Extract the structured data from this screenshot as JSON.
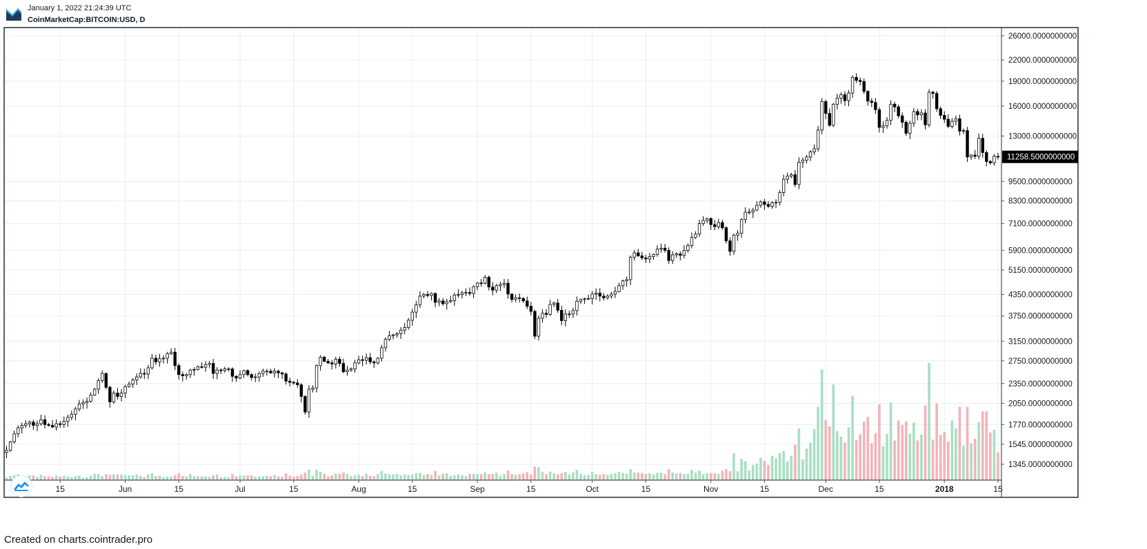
{
  "header": {
    "datetime": "January 1, 2022 21:24:39 UTC",
    "symbol": "CoinMarketCap:BITCOIN:USD, D"
  },
  "footer": {
    "credit": "Created on charts.cointrader.pro"
  },
  "icons": {
    "logo": "cointrader-logo-icon",
    "watermark": "tradingview-watermark-icon"
  },
  "colors": {
    "candle_up_fill": "#ffffff",
    "candle_down_fill": "#000000",
    "candle_border": "#000000",
    "volume_up": "#a9dfc2",
    "volume_down": "#f4b3b8",
    "grid": "#e9eef3",
    "frame": "#1f2d3d",
    "price_label_bg": "#000000",
    "price_label_text": "#ffffff"
  },
  "chart_data": {
    "type": "candlestick",
    "interval": "D",
    "y_scale": "log",
    "grid": true,
    "ylim": [
      1250,
      26000
    ],
    "last_price": 11258.5,
    "last_price_label": "11258.5000000000",
    "y_ticks": [
      {
        "value": 26000,
        "label": "26000.0000000000"
      },
      {
        "value": 22000,
        "label": "22000.0000000000"
      },
      {
        "value": 19000,
        "label": "19000.0000000000"
      },
      {
        "value": 16000,
        "label": "16000.0000000000"
      },
      {
        "value": 13000,
        "label": "13000.0000000000"
      },
      {
        "value": 9500,
        "label": "9500.0000000000"
      },
      {
        "value": 8300,
        "label": "8300.0000000000"
      },
      {
        "value": 7100,
        "label": "7100.0000000000"
      },
      {
        "value": 5900,
        "label": "5900.0000000000"
      },
      {
        "value": 5150,
        "label": "5150.0000000000"
      },
      {
        "value": 4350,
        "label": "4350.0000000000"
      },
      {
        "value": 3750,
        "label": "3750.0000000000"
      },
      {
        "value": 3150,
        "label": "3150.0000000000"
      },
      {
        "value": 2750,
        "label": "2750.0000000000"
      },
      {
        "value": 2350,
        "label": "2350.0000000000"
      },
      {
        "value": 2050,
        "label": "2050.0000000000"
      },
      {
        "value": 1770,
        "label": "1770.0000000000"
      },
      {
        "value": 1545,
        "label": "1545.0000000000"
      },
      {
        "value": 1345,
        "label": "1345.0000000000"
      }
    ],
    "x_ticks": [
      {
        "date": "2017-05-15",
        "label": "15",
        "bold": false
      },
      {
        "date": "2017-06-01",
        "label": "Jun",
        "bold": false
      },
      {
        "date": "2017-06-15",
        "label": "15",
        "bold": false
      },
      {
        "date": "2017-07-01",
        "label": "Jul",
        "bold": false
      },
      {
        "date": "2017-07-15",
        "label": "15",
        "bold": false
      },
      {
        "date": "2017-08-01",
        "label": "Aug",
        "bold": false
      },
      {
        "date": "2017-08-15",
        "label": "15",
        "bold": false
      },
      {
        "date": "2017-09-01",
        "label": "Sep",
        "bold": false
      },
      {
        "date": "2017-09-15",
        "label": "15",
        "bold": false
      },
      {
        "date": "2017-10-01",
        "label": "Oct",
        "bold": false
      },
      {
        "date": "2017-10-15",
        "label": "15",
        "bold": false
      },
      {
        "date": "2017-11-01",
        "label": "Nov",
        "bold": false
      },
      {
        "date": "2017-11-15",
        "label": "15",
        "bold": false
      },
      {
        "date": "2017-12-01",
        "label": "Dec",
        "bold": false
      },
      {
        "date": "2017-12-15",
        "label": "15",
        "bold": false
      },
      {
        "date": "2018-01-01",
        "label": "2018",
        "bold": true
      },
      {
        "date": "2018-01-15",
        "label": "15",
        "bold": false
      }
    ],
    "start_date": "2017-05-01",
    "closes": [
      1480,
      1570,
      1660,
      1730,
      1760,
      1780,
      1800,
      1760,
      1780,
      1830,
      1770,
      1760,
      1740,
      1780,
      1770,
      1810,
      1860,
      1900,
      1970,
      2040,
      2060,
      2080,
      2170,
      2260,
      2400,
      2520,
      2290,
      2070,
      2200,
      2150,
      2200,
      2300,
      2340,
      2410,
      2460,
      2520,
      2510,
      2620,
      2800,
      2730,
      2790,
      2800,
      2890,
      2920,
      2660,
      2500,
      2480,
      2500,
      2580,
      2590,
      2640,
      2630,
      2680,
      2700,
      2520,
      2580,
      2570,
      2600,
      2600,
      2470,
      2440,
      2500,
      2570,
      2500,
      2450,
      2460,
      2520,
      2560,
      2560,
      2530,
      2560,
      2530,
      2510,
      2390,
      2370,
      2360,
      2330,
      2150,
      1930,
      2260,
      2280,
      2660,
      2820,
      2740,
      2710,
      2690,
      2780,
      2700,
      2550,
      2580,
      2600,
      2710,
      2770,
      2760,
      2810,
      2730,
      2710,
      2800,
      3010,
      3190,
      3270,
      3290,
      3320,
      3400,
      3460,
      3640,
      3850,
      4050,
      4300,
      4350,
      4320,
      4380,
      4120,
      4160,
      4080,
      4140,
      4170,
      4330,
      4350,
      4400,
      4410,
      4380,
      4590,
      4710,
      4700,
      4900,
      4580,
      4480,
      4620,
      4660,
      4700,
      4360,
      4200,
      4250,
      4230,
      4160,
      4010,
      3870,
      3260,
      3690,
      3820,
      3790,
      4060,
      4100,
      3900,
      3630,
      3800,
      3800,
      3890,
      4150,
      4200,
      4220,
      4230,
      4360,
      4390,
      4300,
      4250,
      4300,
      4360,
      4440,
      4620,
      4780,
      4820,
      5630,
      5800,
      5680,
      5600,
      5560,
      5650,
      5730,
      5950,
      5990,
      5900,
      5500,
      5720,
      5760,
      5700,
      5900,
      6100,
      6450,
      6600,
      7100,
      7250,
      7350,
      7050,
      6950,
      7150,
      6900,
      6300,
      5860,
      6550,
      6640,
      7300,
      7680,
      7690,
      7790,
      8050,
      8250,
      8100,
      8000,
      8200,
      8220,
      8800,
      9650,
      9850,
      9950,
      9300,
      10850,
      11000,
      11250,
      11650,
      11900,
      13550,
      16500,
      15200,
      14000,
      16200,
      16900,
      17300,
      16600,
      17500,
      19500,
      19100,
      18950,
      17700,
      16550,
      16400,
      15600,
      13800,
      13950,
      14500,
      16200,
      15900,
      14950,
      14300,
      13250,
      14200,
      15400,
      15050,
      15250,
      14050,
      17600,
      17450,
      15700,
      15000,
      14600,
      13900,
      14400,
      14650,
      13450,
      13500,
      11250,
      11400,
      11300,
      12800,
      11600,
      10900,
      10800,
      11300,
      11258
    ]
  }
}
